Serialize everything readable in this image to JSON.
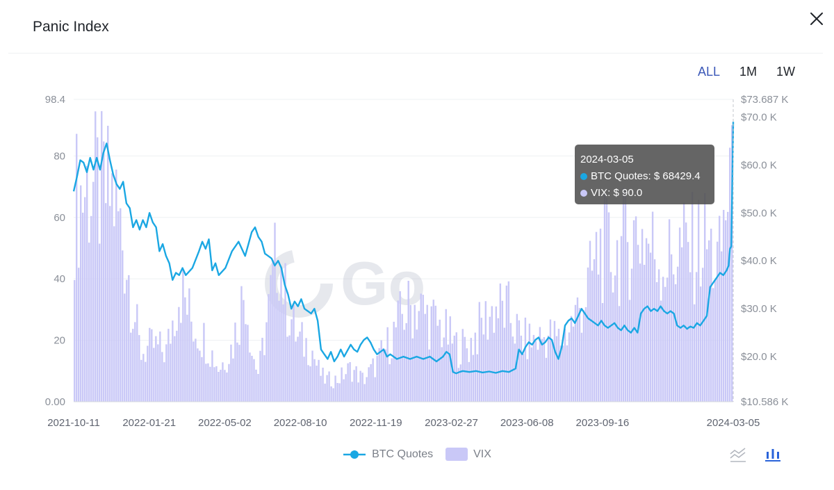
{
  "page": {
    "title": "Panic Index",
    "close_icon": "close-icon"
  },
  "range_tabs": [
    {
      "label": "ALL",
      "active": true
    },
    {
      "label": "1M",
      "active": false
    },
    {
      "label": "1W",
      "active": false
    }
  ],
  "tooltip": {
    "date": "2024-03-05",
    "btc_label": "BTC Quotes: $ 68429.4",
    "vix_label": "VIX: $ 90.0"
  },
  "legend": {
    "btc": "BTC Quotes",
    "vix": "VIX"
  },
  "watermark": "Go",
  "colors": {
    "btc_line": "#1aa7e3",
    "vix_bar": "#c9c8f7",
    "axis_text": "#8a8f98",
    "grid": "#eef0f3"
  },
  "chart_data": {
    "type": "bar",
    "title": "Panic Index",
    "x_ticks": [
      "2021-10-11",
      "2022-01-21",
      "2022-05-02",
      "2022-08-10",
      "2022-11-19",
      "2023-02-27",
      "2023-06-08",
      "2023-09-16",
      "2024-03-05"
    ],
    "x_range_dates": [
      "2021-10-11",
      "2024-03-05"
    ],
    "left_axis": {
      "name": "VIX",
      "ylim": [
        0,
        98.4
      ],
      "ticks": [
        0,
        20,
        40,
        60,
        80,
        98.4
      ],
      "tick_labels": [
        "0.00",
        "20",
        "40",
        "60",
        "80",
        "98.4"
      ]
    },
    "right_axis": {
      "name": "BTC Quotes",
      "ylim": [
        10586,
        73687
      ],
      "ticks": [
        10586,
        20000,
        30000,
        40000,
        50000,
        60000,
        70000,
        73687
      ],
      "tick_labels": [
        "$10.586 K",
        "$20.0 K",
        "$30.0 K",
        "$40.0 K",
        "$50.0 K",
        "$60.0 K",
        "$70.0 K",
        "$73.687 K"
      ]
    },
    "series": [
      {
        "name": "VIX",
        "type": "bar",
        "axis": "left",
        "points": [
          [
            0,
            72
          ],
          [
            0.02,
            78
          ],
          [
            0.04,
            76
          ],
          [
            0.06,
            74
          ],
          [
            0.08,
            50
          ],
          [
            0.1,
            18
          ],
          [
            0.12,
            20
          ],
          [
            0.14,
            18
          ],
          [
            0.16,
            42
          ],
          [
            0.18,
            28
          ],
          [
            0.2,
            22
          ],
          [
            0.22,
            12
          ],
          [
            0.24,
            20
          ],
          [
            0.26,
            42
          ],
          [
            0.27,
            18
          ],
          [
            0.28,
            10
          ],
          [
            0.3,
            40
          ],
          [
            0.31,
            58
          ],
          [
            0.32,
            38
          ],
          [
            0.34,
            22
          ],
          [
            0.36,
            20
          ],
          [
            0.37,
            12
          ],
          [
            0.38,
            8
          ],
          [
            0.4,
            8
          ],
          [
            0.42,
            12
          ],
          [
            0.44,
            8
          ],
          [
            0.46,
            14
          ],
          [
            0.48,
            22
          ],
          [
            0.5,
            32
          ],
          [
            0.52,
            35
          ],
          [
            0.54,
            30
          ],
          [
            0.56,
            26
          ],
          [
            0.58,
            20
          ],
          [
            0.6,
            20
          ],
          [
            0.62,
            28
          ],
          [
            0.64,
            34
          ],
          [
            0.66,
            32
          ],
          [
            0.68,
            22
          ],
          [
            0.7,
            22
          ],
          [
            0.72,
            24
          ],
          [
            0.74,
            22
          ],
          [
            0.76,
            30
          ],
          [
            0.78,
            40
          ],
          [
            0.8,
            56
          ],
          [
            0.82,
            52
          ],
          [
            0.84,
            58
          ],
          [
            0.86,
            62
          ],
          [
            0.88,
            55
          ],
          [
            0.9,
            50
          ],
          [
            0.92,
            55
          ],
          [
            0.94,
            55
          ],
          [
            0.96,
            58
          ],
          [
            0.98,
            48
          ],
          [
            1.0,
            90
          ]
        ]
      },
      {
        "name": "BTC Quotes",
        "type": "line",
        "axis": "right",
        "points": [
          [
            0,
            54500
          ],
          [
            0.005,
            57500
          ],
          [
            0.01,
            61000
          ],
          [
            0.015,
            60500
          ],
          [
            0.02,
            58500
          ],
          [
            0.025,
            61500
          ],
          [
            0.03,
            59000
          ],
          [
            0.035,
            61500
          ],
          [
            0.04,
            59000
          ],
          [
            0.045,
            62500
          ],
          [
            0.05,
            64500
          ],
          [
            0.055,
            61000
          ],
          [
            0.06,
            58000
          ],
          [
            0.065,
            56000
          ],
          [
            0.07,
            55000
          ],
          [
            0.075,
            56500
          ],
          [
            0.08,
            52000
          ],
          [
            0.085,
            51000
          ],
          [
            0.09,
            47000
          ],
          [
            0.095,
            48500
          ],
          [
            0.1,
            46500
          ],
          [
            0.105,
            48500
          ],
          [
            0.11,
            47000
          ],
          [
            0.115,
            50000
          ],
          [
            0.12,
            48000
          ],
          [
            0.125,
            47000
          ],
          [
            0.13,
            42000
          ],
          [
            0.135,
            43500
          ],
          [
            0.14,
            41000
          ],
          [
            0.145,
            39500
          ],
          [
            0.15,
            36000
          ],
          [
            0.155,
            37500
          ],
          [
            0.16,
            37000
          ],
          [
            0.165,
            38500
          ],
          [
            0.17,
            37000
          ],
          [
            0.18,
            38500
          ],
          [
            0.19,
            42000
          ],
          [
            0.195,
            44000
          ],
          [
            0.2,
            42500
          ],
          [
            0.205,
            44500
          ],
          [
            0.21,
            38000
          ],
          [
            0.215,
            39500
          ],
          [
            0.22,
            37000
          ],
          [
            0.23,
            38500
          ],
          [
            0.24,
            42000
          ],
          [
            0.25,
            44000
          ],
          [
            0.26,
            41000
          ],
          [
            0.265,
            43500
          ],
          [
            0.27,
            46000
          ],
          [
            0.275,
            47000
          ],
          [
            0.28,
            45000
          ],
          [
            0.285,
            44000
          ],
          [
            0.29,
            41500
          ],
          [
            0.295,
            41000
          ],
          [
            0.3,
            40500
          ],
          [
            0.305,
            39000
          ],
          [
            0.31,
            40000
          ],
          [
            0.315,
            38500
          ],
          [
            0.32,
            35000
          ],
          [
            0.325,
            33000
          ],
          [
            0.33,
            30000
          ],
          [
            0.335,
            31500
          ],
          [
            0.34,
            30500
          ],
          [
            0.345,
            32000
          ],
          [
            0.35,
            30000
          ],
          [
            0.355,
            29500
          ],
          [
            0.36,
            29000
          ],
          [
            0.365,
            30000
          ],
          [
            0.37,
            27500
          ],
          [
            0.375,
            21500
          ],
          [
            0.38,
            20500
          ],
          [
            0.385,
            19500
          ],
          [
            0.39,
            21000
          ],
          [
            0.395,
            19000
          ],
          [
            0.4,
            20000
          ],
          [
            0.405,
            21500
          ],
          [
            0.41,
            20000
          ],
          [
            0.42,
            22500
          ],
          [
            0.425,
            21500
          ],
          [
            0.43,
            21000
          ],
          [
            0.435,
            22500
          ],
          [
            0.44,
            23500
          ],
          [
            0.445,
            24000
          ],
          [
            0.45,
            23000
          ],
          [
            0.455,
            21500
          ],
          [
            0.46,
            20500
          ],
          [
            0.47,
            21500
          ],
          [
            0.475,
            20000
          ],
          [
            0.48,
            20500
          ],
          [
            0.49,
            19500
          ],
          [
            0.5,
            20000
          ],
          [
            0.51,
            19500
          ],
          [
            0.52,
            20000
          ],
          [
            0.53,
            19500
          ],
          [
            0.54,
            20000
          ],
          [
            0.55,
            19000
          ],
          [
            0.56,
            20000
          ],
          [
            0.565,
            21000
          ],
          [
            0.57,
            20500
          ],
          [
            0.575,
            16800
          ],
          [
            0.58,
            16500
          ],
          [
            0.585,
            16800
          ],
          [
            0.59,
            17000
          ],
          [
            0.6,
            16800
          ],
          [
            0.61,
            17000
          ],
          [
            0.62,
            16700
          ],
          [
            0.63,
            16900
          ],
          [
            0.64,
            16600
          ],
          [
            0.65,
            17000
          ],
          [
            0.66,
            16800
          ],
          [
            0.67,
            17500
          ],
          [
            0.675,
            21500
          ],
          [
            0.68,
            20500
          ],
          [
            0.685,
            22000
          ],
          [
            0.69,
            23000
          ],
          [
            0.695,
            22500
          ],
          [
            0.7,
            23500
          ],
          [
            0.705,
            24000
          ],
          [
            0.71,
            22500
          ],
          [
            0.715,
            23000
          ],
          [
            0.72,
            24000
          ],
          [
            0.725,
            23500
          ],
          [
            0.73,
            21000
          ],
          [
            0.735,
            19500
          ],
          [
            0.74,
            22000
          ],
          [
            0.745,
            26500
          ],
          [
            0.75,
            27500
          ],
          [
            0.755,
            28000
          ],
          [
            0.76,
            27000
          ],
          [
            0.765,
            28500
          ],
          [
            0.77,
            30000
          ],
          [
            0.775,
            29000
          ],
          [
            0.78,
            28000
          ],
          [
            0.785,
            27500
          ],
          [
            0.79,
            27000
          ],
          [
            0.795,
            26500
          ],
          [
            0.8,
            27500
          ],
          [
            0.805,
            26500
          ],
          [
            0.81,
            26000
          ],
          [
            0.815,
            26500
          ],
          [
            0.82,
            27000
          ],
          [
            0.825,
            26000
          ],
          [
            0.83,
            25500
          ],
          [
            0.835,
            26500
          ],
          [
            0.84,
            25500
          ],
          [
            0.845,
            25000
          ],
          [
            0.85,
            26000
          ],
          [
            0.855,
            25000
          ],
          [
            0.86,
            29000
          ],
          [
            0.865,
            30000
          ],
          [
            0.87,
            30500
          ],
          [
            0.875,
            29500
          ],
          [
            0.88,
            30000
          ],
          [
            0.885,
            29500
          ],
          [
            0.89,
            30500
          ],
          [
            0.895,
            29500
          ],
          [
            0.9,
            29000
          ],
          [
            0.905,
            29500
          ],
          [
            0.91,
            29000
          ],
          [
            0.915,
            26500
          ],
          [
            0.92,
            26000
          ],
          [
            0.925,
            26500
          ],
          [
            0.93,
            25800
          ],
          [
            0.935,
            26300
          ],
          [
            0.94,
            26000
          ],
          [
            0.945,
            27000
          ],
          [
            0.95,
            26500
          ],
          [
            0.955,
            27500
          ],
          [
            0.96,
            28500
          ],
          [
            0.965,
            34500
          ],
          [
            0.97,
            35500
          ],
          [
            0.975,
            36500
          ],
          [
            0.98,
            37500
          ],
          [
            0.985,
            37000
          ],
          [
            0.99,
            38000
          ],
          [
            0.993,
            39000
          ],
          [
            0.995,
            42500
          ],
          [
            0.997,
            43000
          ],
          [
            1.0,
            69000
          ]
        ]
      }
    ],
    "highlight": {
      "date": "2024-03-05",
      "btc": 68429.4,
      "vix": 90.0
    }
  }
}
